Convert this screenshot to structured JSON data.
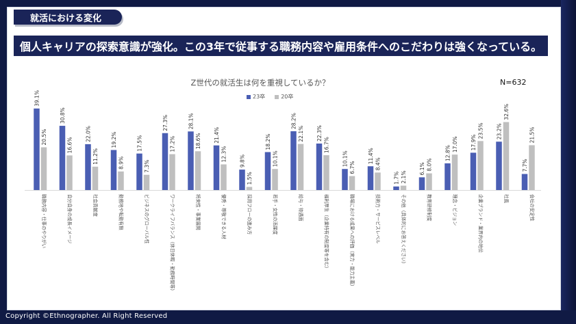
{
  "section_tab": "就活における変化",
  "headline": "個人キャリアの探索意識が強化。この3年で従事する職務内容や雇用条件へのこだわりは強くなっている。",
  "copyright": "Copyright ©Ethnographer. All Right Reserved",
  "sample_size": "N=632",
  "colors": {
    "series_23": "#4a5eb3",
    "series_20": "#bfbfbf",
    "navy": "#1a2458"
  },
  "chart_data": {
    "type": "bar",
    "title": "Z世代の就活生は何を重視しているか？",
    "xlabel": "",
    "ylabel": "",
    "ylim": [
      0,
      40
    ],
    "grid": false,
    "legend_position": "top",
    "value_format": "percent_1dp",
    "categories": [
      "職務内容・仕事のやりがい",
      "自分自身の成長イメージ",
      "社会貢献度",
      "勤務地や転勤有無",
      "ビジネスのグローバル性",
      "ワークライフバランス（休日休暇・勤務時間等）",
      "将来性・事業展開",
      "優秀・尊敬できる人材",
      "採用フローの進み方",
      "若手・女性の活躍度",
      "給与・待遇面",
      "福利厚生（企業特有の制度等を含む）",
      "職場における成果への評価（実力・能力主義）",
      "技術力・サービスレベル",
      "その他（具体的にお答えください）",
      "教育研修制度",
      "理念・ビジョン",
      "企業ブランド・業界内の地位",
      "社風",
      "会社の安定性"
    ],
    "series": [
      {
        "name": "23卒",
        "values": [
          39.1,
          30.8,
          22.0,
          19.2,
          17.5,
          27.3,
          28.1,
          21.4,
          9.8,
          18.2,
          28.2,
          22.3,
          10.1,
          11.4,
          1.7,
          6.1,
          12.8,
          17.9,
          23.2,
          7.7
        ]
      },
      {
        "name": "20卒",
        "values": [
          20.5,
          16.6,
          11.2,
          8.9,
          7.3,
          17.2,
          18.6,
          12.3,
          1.5,
          10.1,
          22.1,
          16.7,
          6.7,
          8.4,
          2.1,
          8.0,
          17.0,
          23.5,
          32.6,
          21.5
        ]
      }
    ]
  }
}
